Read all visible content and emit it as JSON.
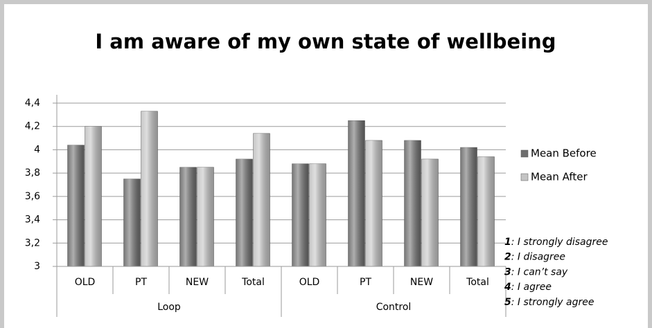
{
  "chart_data": {
    "type": "bar",
    "title": "I am aware of my own state of wellbeing",
    "groups": [
      {
        "name": "Loop",
        "span": 4
      },
      {
        "name": "Control",
        "span": 4
      }
    ],
    "categories": [
      "OLD",
      "PT",
      "NEW",
      "Total",
      "OLD",
      "PT",
      "NEW",
      "Total"
    ],
    "series": [
      {
        "name": "Mean Before",
        "color": "#6e6e6e",
        "values": [
          4.04,
          3.75,
          3.85,
          3.92,
          3.88,
          4.25,
          4.08,
          4.02
        ]
      },
      {
        "name": "Mean After",
        "color": "#c4c4c4",
        "values": [
          4.2,
          4.33,
          3.85,
          4.14,
          3.88,
          4.08,
          3.92,
          3.94
        ]
      }
    ],
    "ylim": [
      3,
      4.4
    ],
    "yticks": [
      3,
      {
        "value": 3.2,
        "label": "3,2"
      },
      {
        "value": 3.4,
        "label": "3,4"
      },
      {
        "value": 3.6,
        "label": "3,6"
      },
      {
        "value": 3.8,
        "label": "3,8"
      },
      4,
      {
        "value": 4.2,
        "label": "4,2"
      },
      {
        "value": 4.4,
        "label": "4,4"
      }
    ],
    "grid": true,
    "legend": "right",
    "scale_notes": [
      {
        "key": "1",
        "text": ": I strongly disagree"
      },
      {
        "key": "2",
        "text": ": I disagree"
      },
      {
        "key": "3",
        "text": ": I can’t say"
      },
      {
        "key": "4",
        "text": ": I agree"
      },
      {
        "key": "5",
        "text": ": I strongly agree"
      }
    ]
  }
}
